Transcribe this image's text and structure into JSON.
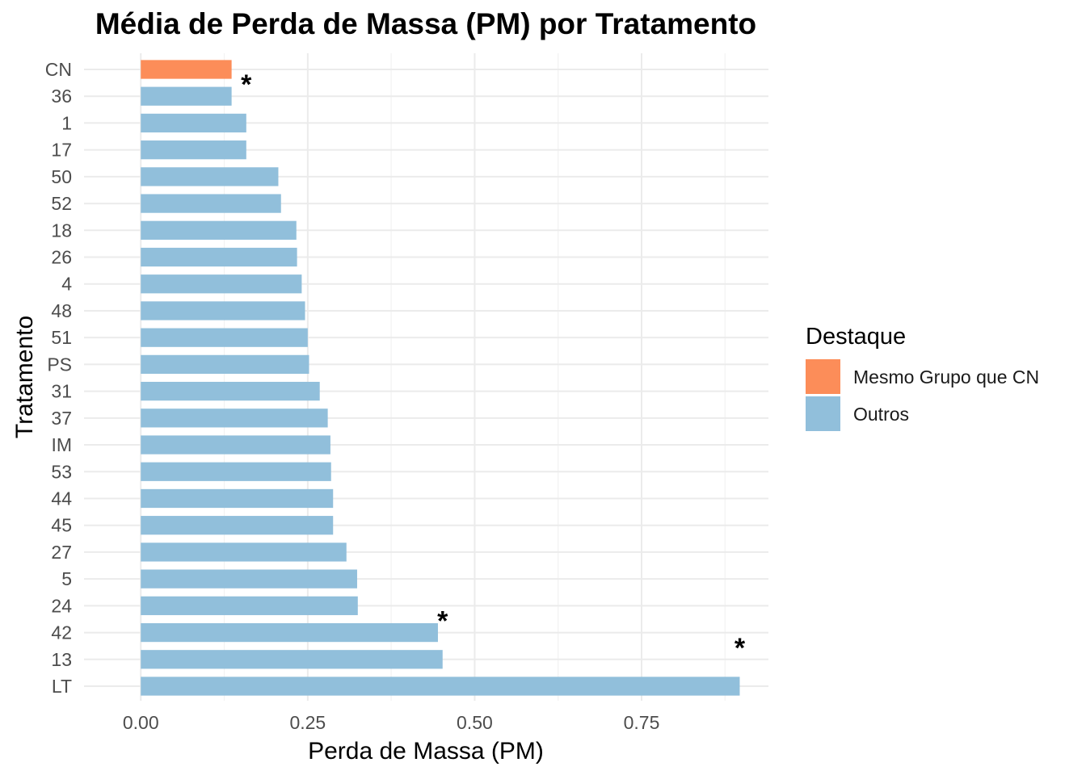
{
  "chart_data": {
    "type": "bar",
    "orientation": "horizontal",
    "title": "Média de Perda de Massa (PM) por Tratamento",
    "xlabel": "Perda de Massa (PM)",
    "ylabel": "Tratamento",
    "xlim": [
      -0.085,
      0.94
    ],
    "x_ticks": [
      0.0,
      0.25,
      0.5,
      0.75
    ],
    "x_tick_labels": [
      "0.00",
      "0.25",
      "0.50",
      "0.75"
    ],
    "grid": true,
    "legend": {
      "title": "Destaque",
      "position": "right",
      "entries": [
        {
          "label": "Mesmo Grupo que CN",
          "color": "#FC8D59"
        },
        {
          "label": "Outros",
          "color": "#91BFDB"
        }
      ]
    },
    "categories": [
      "CN",
      "36",
      "1",
      "17",
      "50",
      "52",
      "18",
      "26",
      "4",
      "48",
      "51",
      "PS",
      "31",
      "37",
      "IM",
      "53",
      "44",
      "45",
      "27",
      "5",
      "24",
      "42",
      "13",
      "LT"
    ],
    "values": [
      0.136,
      0.136,
      0.158,
      0.158,
      0.206,
      0.21,
      0.233,
      0.234,
      0.241,
      0.246,
      0.25,
      0.252,
      0.268,
      0.28,
      0.284,
      0.285,
      0.288,
      0.288,
      0.308,
      0.324,
      0.325,
      0.445,
      0.452,
      0.897
    ],
    "groups": [
      "Mesmo Grupo que CN",
      "Outros",
      "Outros",
      "Outros",
      "Outros",
      "Outros",
      "Outros",
      "Outros",
      "Outros",
      "Outros",
      "Outros",
      "Outros",
      "Outros",
      "Outros",
      "Outros",
      "Outros",
      "Outros",
      "Outros",
      "Outros",
      "Outros",
      "Outros",
      "Outros",
      "Outros",
      "Outros"
    ],
    "annotations": [
      {
        "text": "*",
        "category": "36",
        "x": 0.158
      },
      {
        "text": "*",
        "category": "42",
        "x": 0.452
      },
      {
        "text": "*",
        "category": "13",
        "x": 0.897
      }
    ]
  }
}
